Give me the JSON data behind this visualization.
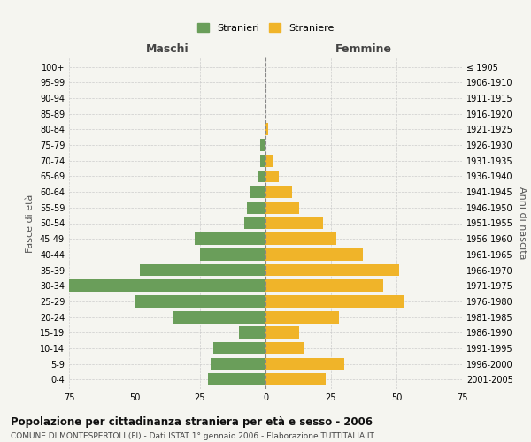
{
  "age_groups_bottom_to_top": [
    "0-4",
    "5-9",
    "10-14",
    "15-19",
    "20-24",
    "25-29",
    "30-34",
    "35-39",
    "40-44",
    "45-49",
    "50-54",
    "55-59",
    "60-64",
    "65-69",
    "70-74",
    "75-79",
    "80-84",
    "85-89",
    "90-94",
    "95-99",
    "100+"
  ],
  "birth_years_bottom_to_top": [
    "2001-2005",
    "1996-2000",
    "1991-1995",
    "1986-1990",
    "1981-1985",
    "1976-1980",
    "1971-1975",
    "1966-1970",
    "1961-1965",
    "1956-1960",
    "1951-1955",
    "1946-1950",
    "1941-1945",
    "1936-1940",
    "1931-1935",
    "1926-1930",
    "1921-1925",
    "1916-1920",
    "1911-1915",
    "1906-1910",
    "≤ 1905"
  ],
  "males_bottom_to_top": [
    22,
    21,
    20,
    10,
    35,
    50,
    75,
    48,
    25,
    27,
    8,
    7,
    6,
    3,
    2,
    2,
    0,
    0,
    0,
    0,
    0
  ],
  "females_bottom_to_top": [
    23,
    30,
    15,
    13,
    28,
    53,
    45,
    51,
    37,
    27,
    22,
    13,
    10,
    5,
    3,
    0,
    1,
    0,
    0,
    0,
    0
  ],
  "male_color": "#6a9e5a",
  "female_color": "#f0b429",
  "background_color": "#f5f5f0",
  "grid_color": "#cccccc",
  "dashed_line_color": "#888888",
  "title": "Popolazione per cittadinanza straniera per età e sesso - 2006",
  "subtitle": "COMUNE DI MONTESPERTOLI (FI) - Dati ISTAT 1° gennaio 2006 - Elaborazione TUTTITALIA.IT",
  "xlabel_left": "Maschi",
  "xlabel_right": "Femmine",
  "ylabel_left": "Fasce di età",
  "ylabel_right": "Anni di nascita",
  "legend_stranieri": "Stranieri",
  "legend_straniere": "Straniere",
  "xlim": 75,
  "title_fontsize": 8.5,
  "subtitle_fontsize": 6.5,
  "tick_fontsize": 7,
  "label_fontsize": 8,
  "header_fontsize": 9,
  "legend_fontsize": 8
}
